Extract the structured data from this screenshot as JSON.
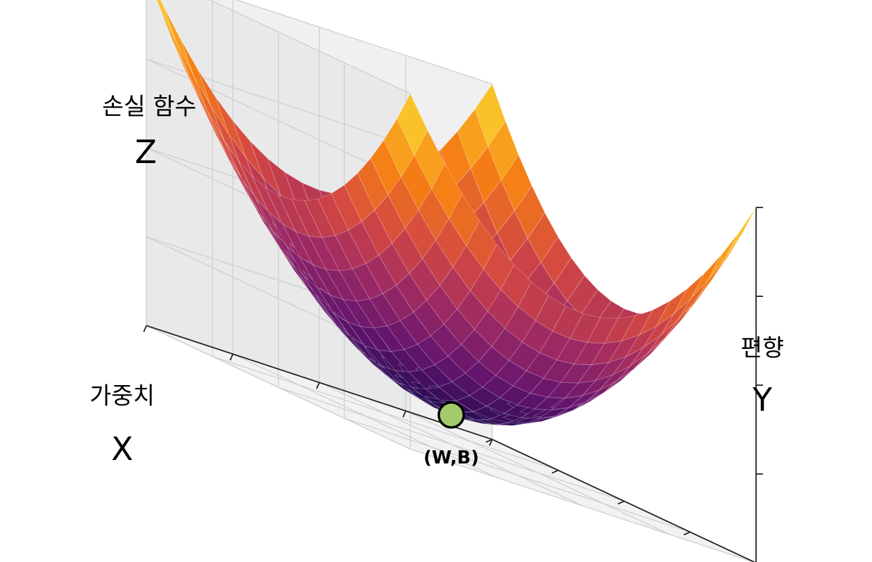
{
  "chart_data": {
    "type": "surface",
    "function": "z = x^2 + y^2",
    "x_range": [
      -1,
      1
    ],
    "y_range": [
      -1,
      1
    ],
    "z_range": [
      0,
      2
    ],
    "grid_steps": 20,
    "colormap": "inferno",
    "grid": true,
    "axes": {
      "x": {
        "title": "가중치",
        "letter": "X"
      },
      "y": {
        "title": "편향",
        "letter": "Y"
      },
      "z": {
        "title": "손실 함수",
        "letter": "Z"
      }
    },
    "minimum_point": {
      "x": 0,
      "y": 0,
      "z": 0,
      "label": "(W,B)",
      "color": "#a2cc6b"
    }
  }
}
